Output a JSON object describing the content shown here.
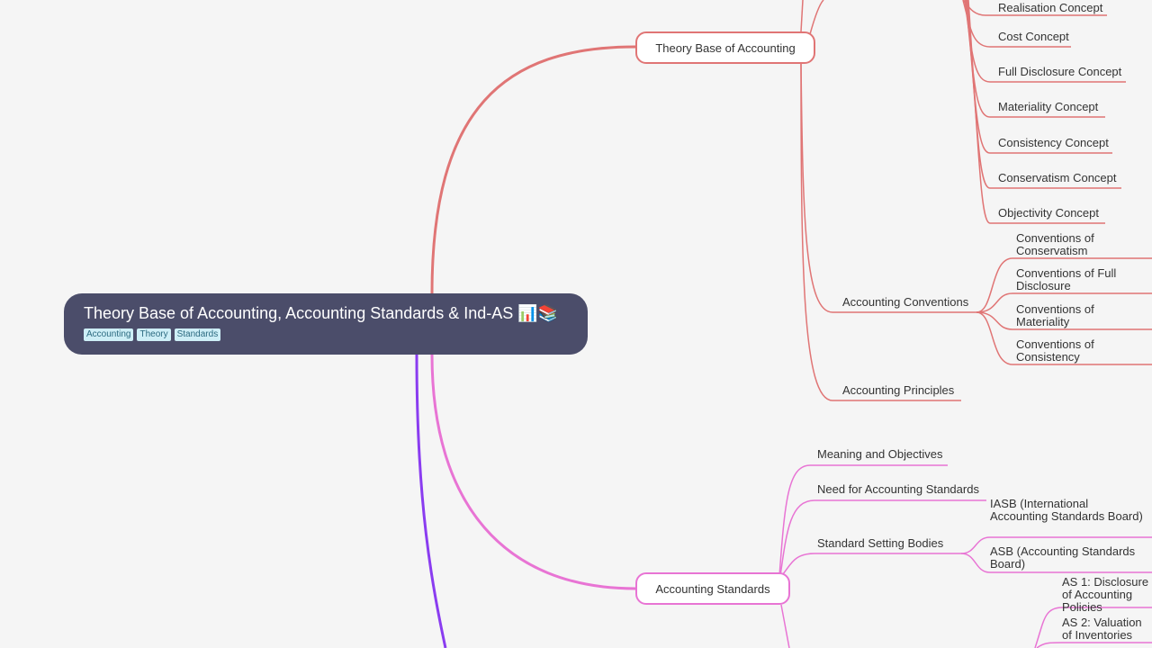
{
  "root": {
    "title": "Theory Base of Accounting, Accounting Standards & Ind-AS 📊📚",
    "tags": [
      "Accounting",
      "Theory",
      "Standards"
    ]
  },
  "colors": {
    "theory": "#e07575",
    "standards": "#e874d4",
    "indas": "#8a3cf0",
    "root_bg": "#4b4d6a"
  },
  "theory": {
    "label": "Theory Base of Accounting",
    "concepts": [
      "Realisation Concept",
      "Cost Concept",
      "Full Disclosure Concept",
      "Materiality Concept",
      "Consistency Concept",
      "Conservatism Concept",
      "Objectivity Concept"
    ],
    "conventions": {
      "label": "Accounting Conventions",
      "items": [
        "Conventions of Conservatism",
        "Conventions of Full Disclosure",
        "Conventions of Materiality",
        "Conventions of Consistency"
      ]
    },
    "principles": "Accounting Principles"
  },
  "standards": {
    "label": "Accounting Standards",
    "meaning": "Meaning and Objectives",
    "need": "Need for Accounting Standards",
    "bodies": {
      "label": "Standard Setting Bodies",
      "items": [
        "IASB (International Accounting Standards Board)",
        "ASB (Accounting Standards Board)"
      ]
    },
    "as_items": [
      "AS 1: Disclosure of Accounting Policies",
      "AS 2: Valuation of Inventories"
    ]
  }
}
